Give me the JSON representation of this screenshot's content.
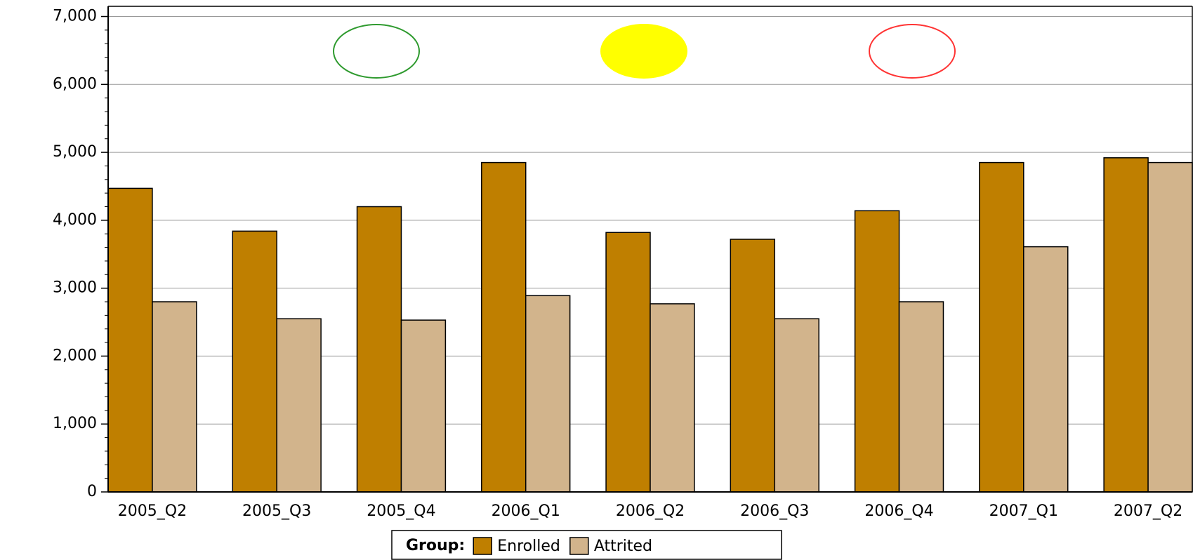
{
  "chart_data": {
    "type": "bar",
    "categories": [
      "2005_Q2",
      "2005_Q3",
      "2005_Q4",
      "2006_Q1",
      "2006_Q2",
      "2006_Q3",
      "2006_Q4",
      "2007_Q1",
      "2007_Q2"
    ],
    "series": [
      {
        "name": "Enrolled",
        "color": "#bf7f00",
        "values": [
          4470,
          3840,
          4200,
          4850,
          3820,
          3720,
          4140,
          4850,
          4920
        ]
      },
      {
        "name": "Attrited",
        "color": "#d2b48c",
        "values": [
          2800,
          2550,
          2530,
          2890,
          2770,
          2550,
          2800,
          3610,
          4850
        ]
      }
    ],
    "legend_title": "Group:",
    "ylim": [
      0,
      7150
    ],
    "yticks": [
      0,
      {
        "value": 1000,
        "label": "1,000"
      },
      {
        "value": 2000,
        "label": "2,000"
      },
      {
        "value": 3000,
        "label": "3,000"
      },
      {
        "value": 4000,
        "label": "4,000"
      },
      {
        "value": 5000,
        "label": "5,000"
      },
      {
        "value": 6000,
        "label": "6,000"
      },
      {
        "value": 7000,
        "label": "7,000"
      }
    ],
    "grid": true
  }
}
